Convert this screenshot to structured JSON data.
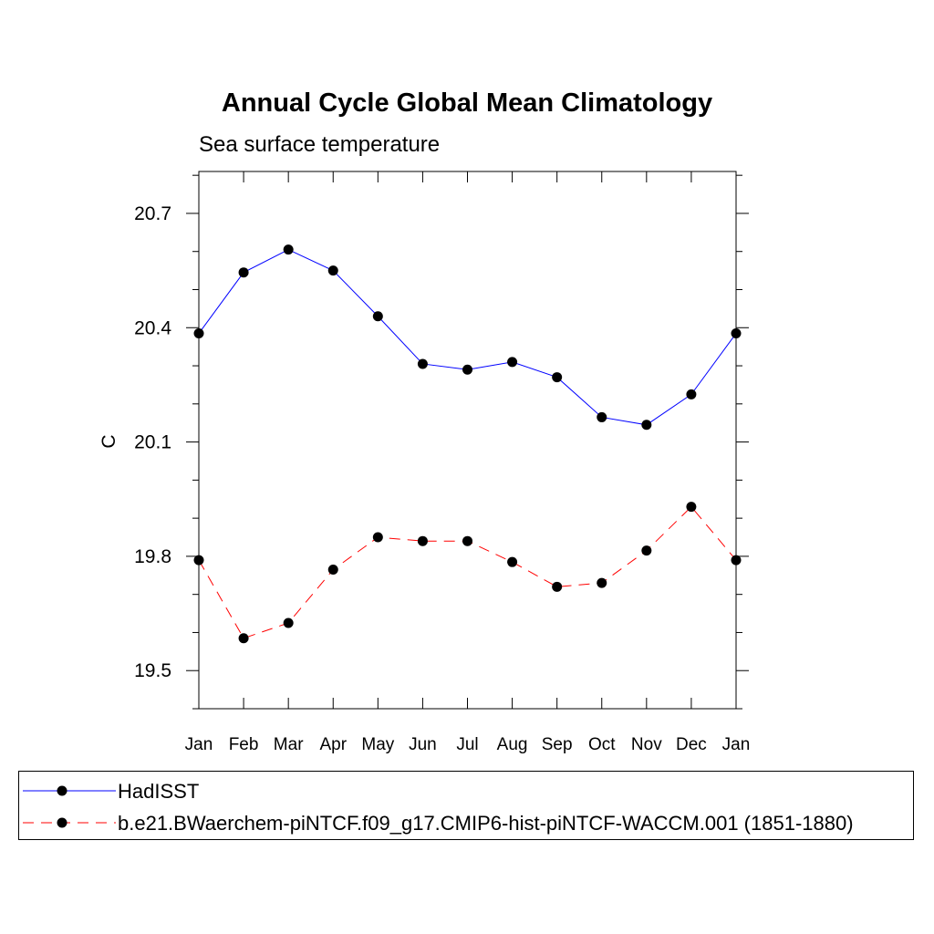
{
  "chart_data": {
    "type": "line",
    "title": "Annual Cycle Global Mean Climatology",
    "subtitle": "Sea surface temperature",
    "xlabel": "",
    "ylabel": "C",
    "categories": [
      "Jan",
      "Feb",
      "Mar",
      "Apr",
      "May",
      "Jun",
      "Jul",
      "Aug",
      "Sep",
      "Oct",
      "Nov",
      "Dec",
      "Jan"
    ],
    "ylim": [
      19.4,
      20.81
    ],
    "yticks": [
      "19.5",
      "19.8",
      "20.1",
      "20.4",
      "20.7"
    ],
    "ytick_values": [
      19.5,
      19.8,
      20.1,
      20.4,
      20.7
    ],
    "grid": false,
    "legend_position": "bottom",
    "series": [
      {
        "name": "HadISST",
        "color": "#0000ff",
        "dash": "solid",
        "marker": "filled-circle",
        "values": [
          20.385,
          20.545,
          20.605,
          20.55,
          20.43,
          20.305,
          20.29,
          20.31,
          20.27,
          20.165,
          20.145,
          20.225,
          20.385
        ]
      },
      {
        "name": "b.e21.BWaerchem-piNTCF.f09_g17.CMIP6-hist-piNTCF-WACCM.001 (1851-1880)",
        "color": "#ff0000",
        "dash": "dashed",
        "marker": "filled-circle",
        "values": [
          19.79,
          19.585,
          19.625,
          19.765,
          19.85,
          19.84,
          19.84,
          19.785,
          19.72,
          19.73,
          19.815,
          19.93,
          19.79
        ]
      }
    ]
  }
}
